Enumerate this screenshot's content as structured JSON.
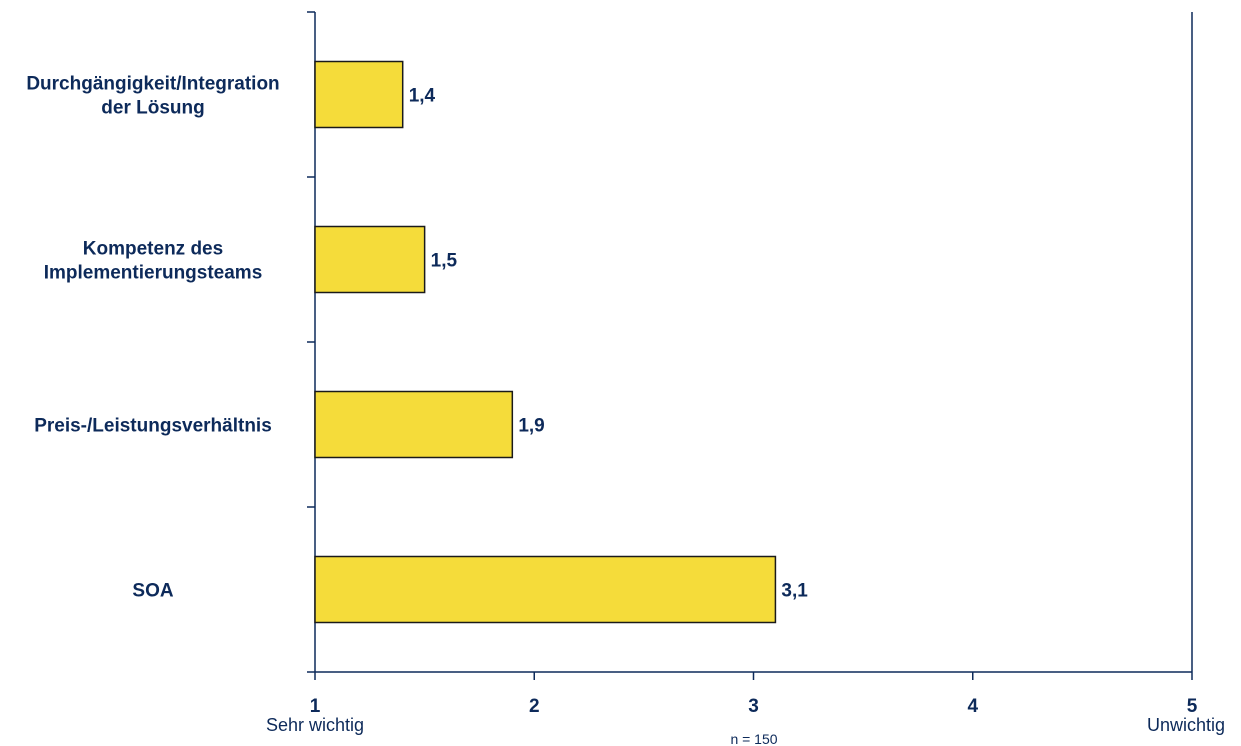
{
  "chart_data": {
    "type": "bar",
    "orientation": "horizontal",
    "categories": [
      [
        "Durchgängigkeit/Integration",
        "der Lösung"
      ],
      [
        "Kompetenz des",
        "Implementierungsteams"
      ],
      [
        "Preis-/Leistungsverhältnis"
      ],
      [
        "SOA"
      ]
    ],
    "values": [
      1.4,
      1.5,
      1.9,
      3.1
    ],
    "value_labels": [
      "1,4",
      "1,5",
      "1,9",
      "3,1"
    ],
    "xlim": [
      1,
      5
    ],
    "x_ticks": [
      "1",
      "2",
      "3",
      "4",
      "5"
    ],
    "x_end_labels": {
      "left": "Sehr wichtig",
      "right": "Unwichtig"
    },
    "note": "n = 150",
    "grid": false,
    "colors": {
      "bar_fill": "#f5dc3a",
      "bar_stroke": "#1a1a1a",
      "axis": "#0d2a5a",
      "text": "#0d2a5a"
    }
  }
}
